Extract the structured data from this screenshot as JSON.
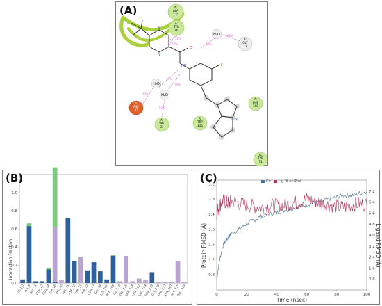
{
  "panels": {
    "a": "(A)",
    "b": "(B)",
    "c": "(C)"
  },
  "diagram": {
    "residues": [
      {
        "id": "ala135",
        "lines": [
          "A:",
          "ALA",
          "135"
        ],
        "color": "#c8e89a"
      },
      {
        "id": "tyr16",
        "lines": [
          "A:",
          "TYR",
          "16"
        ],
        "color": "#c8e89a"
      },
      {
        "id": "gly11",
        "lines": [
          "A:",
          "GLY",
          "11"
        ],
        "color": "#e8e8e8"
      },
      {
        "id": "phe168",
        "lines": [
          "A:",
          "PHE",
          "168"
        ],
        "color": "#c8e89a"
      },
      {
        "id": "asp32",
        "lines": [
          "A:",
          "ASP",
          "32"
        ],
        "color": "#e0612c"
      },
      {
        "id": "val31",
        "lines": [
          "A:",
          "VAL",
          "31"
        ],
        "color": "#c8e89a"
      },
      {
        "id": "trp115",
        "lines": [
          "A:",
          "TRP",
          "115"
        ],
        "color": "#c8e89a"
      },
      {
        "id": "tyr71",
        "lines": [
          "A:",
          "TYR",
          "71"
        ],
        "color": "#c8e89a"
      }
    ],
    "waters": [
      "H₂O",
      "H₂O",
      "H₂O"
    ],
    "atoms": {
      "F1": "F",
      "F2": "F",
      "F3": "F",
      "N1": "N",
      "N2": "N",
      "O": "O",
      "NH": "NH",
      "N3": "N"
    },
    "percents": [
      "72%",
      "67%",
      "46%",
      "60%",
      "23%",
      "73%",
      "59%",
      "70%"
    ]
  },
  "chart_data": [
    {
      "type": "bar",
      "stacked": true,
      "ylabel": "Interaction Fraction",
      "ylim": [
        0,
        1.2
      ],
      "yticks": [
        0.0,
        0.2,
        0.4,
        0.6,
        0.8,
        1.0
      ],
      "categories": [
        "LEU_6",
        "LYS_9",
        "GLY_11",
        "GLN_12",
        "GLU_14",
        "TYR_16",
        "VAL_30",
        "VAL_31",
        "ASP_32",
        "TYR_71",
        "THR_72",
        "GLN_73",
        "GLY_74",
        "LYS_107",
        "PHE_108",
        "ILE_110",
        "TRP_115",
        "SER_118",
        "LEU_152",
        "LEU_154",
        "SER_229",
        "GLY_230",
        "THR_232",
        "ASN_307",
        "ALA_335",
        "GLU_339"
      ],
      "series": [
        {
          "name": "H-bonds",
          "color": "#2e5f9e",
          "values": [
            0.04,
            0.63,
            0.02,
            0.02,
            0.15,
            0.01,
            0.0,
            0.72,
            0.24,
            0.0,
            0.14,
            0.23,
            0.13,
            0.04,
            0.3,
            0.0,
            0.0,
            0.0,
            0.0,
            0.0,
            0.12,
            0.0,
            0.0,
            0.0,
            0.0,
            0.0
          ]
        },
        {
          "name": "Hydrophobic",
          "color": "#b9a4cf",
          "values": [
            0.0,
            0.0,
            0.0,
            0.0,
            0.0,
            0.61,
            0.03,
            0.0,
            0.0,
            0.29,
            0.0,
            0.0,
            0.0,
            0.0,
            0.0,
            0.02,
            0.3,
            0.02,
            0.05,
            0.03,
            0.0,
            0.01,
            0.01,
            0.01,
            0.24,
            0.01
          ]
        },
        {
          "name": "Water bridges",
          "color": "#7fc97f",
          "values": [
            0.0,
            0.03,
            0.0,
            0.0,
            0.02,
            0.66,
            0.0,
            0.0,
            0.0,
            0.0,
            0.0,
            0.0,
            0.0,
            0.0,
            0.01,
            0.0,
            0.0,
            0.0,
            0.0,
            0.0,
            0.0,
            0.0,
            0.0,
            0.0,
            0.0,
            0.0
          ]
        }
      ]
    },
    {
      "type": "line",
      "xlabel": "Time (nsec)",
      "ylabel": "Protein RMSD (Å)",
      "y2label": "Ligand RMSD (Å)",
      "xlim": [
        0,
        100
      ],
      "ylim": [
        0.4,
        3.3
      ],
      "y2lim": [
        0,
        8
      ],
      "xticks": [
        0,
        20,
        40,
        60,
        80,
        100
      ],
      "yticks": [
        0.8,
        1.2,
        1.6,
        2.0,
        2.4,
        2.8,
        3.2
      ],
      "y2ticks": [
        0.8,
        1.6,
        2.4,
        3.2,
        4.0,
        4.8,
        5.6,
        6.4,
        7.2
      ],
      "legend": "top",
      "series": [
        {
          "name": "Cα",
          "axis": "left",
          "color": "#4a7191",
          "x": [
            0,
            2,
            4,
            6,
            8,
            10,
            15,
            20,
            25,
            30,
            35,
            40,
            45,
            50,
            55,
            60,
            65,
            70,
            75,
            80,
            85,
            90,
            95,
            100
          ],
          "values": [
            0.7,
            1.2,
            1.55,
            1.7,
            1.8,
            1.9,
            2.0,
            2.15,
            2.25,
            2.35,
            2.4,
            2.45,
            2.5,
            2.55,
            2.6,
            2.65,
            2.7,
            2.75,
            2.8,
            2.85,
            2.9,
            2.9,
            2.95,
            3.0
          ]
        },
        {
          "name": "Lig fit on Prot",
          "axis": "right",
          "color": "#b0305a",
          "x": [
            0,
            2,
            4,
            6,
            8,
            10,
            15,
            20,
            25,
            30,
            35,
            40,
            45,
            50,
            55,
            60,
            65,
            70,
            75,
            80,
            85,
            90,
            95,
            100
          ],
          "values": [
            5.6,
            6.2,
            6.5,
            6.4,
            6.3,
            6.5,
            6.3,
            6.2,
            6.1,
            6.0,
            6.1,
            6.2,
            6.2,
            6.3,
            6.4,
            6.6,
            6.5,
            6.3,
            6.2,
            6.1,
            6.0,
            6.2,
            6.3,
            6.2
          ]
        }
      ]
    }
  ]
}
